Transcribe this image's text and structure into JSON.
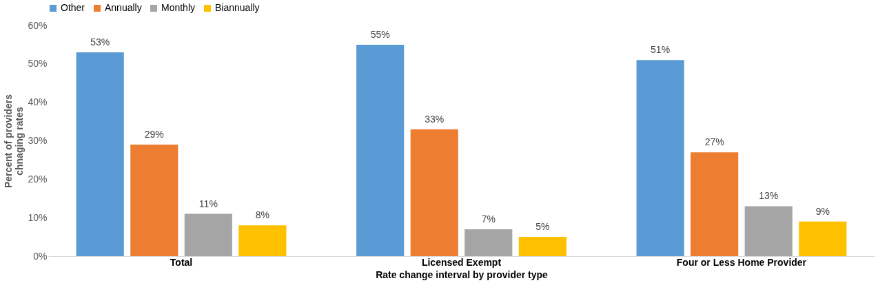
{
  "chart_data": {
    "type": "bar",
    "xlabel": "Rate change interval by provider type",
    "ylabel": "Percent of providers chnaging rates",
    "categories": [
      "Total",
      "Licensed Exempt",
      "Four or Less Home Provider"
    ],
    "series": [
      {
        "name": "Other",
        "color": "#5b9bd5",
        "values": [
          53,
          55,
          51
        ],
        "value_labels": [
          "53%",
          "55%",
          "51%"
        ]
      },
      {
        "name": "Annually",
        "color": "#ed7d31",
        "values": [
          29,
          33,
          27
        ],
        "value_labels": [
          "29%",
          "33%",
          "27%"
        ]
      },
      {
        "name": "Monthly",
        "color": "#a5a5a5",
        "values": [
          11,
          7,
          13
        ],
        "value_labels": [
          "11%",
          "7%",
          "13%"
        ]
      },
      {
        "name": "Biannually",
        "color": "#ffc000",
        "values": [
          8,
          5,
          9
        ],
        "value_labels": [
          "8%",
          "5%",
          "9%"
        ]
      }
    ],
    "ylim": [
      0,
      60
    ],
    "yticks": [
      {
        "value": 0,
        "label": "0%"
      },
      {
        "value": 10,
        "label": "10%"
      },
      {
        "value": 20,
        "label": "20%"
      },
      {
        "value": 30,
        "label": "30%"
      },
      {
        "value": 40,
        "label": "40%"
      },
      {
        "value": 50,
        "label": "50%"
      },
      {
        "value": 60,
        "label": "60%"
      }
    ],
    "grid": false,
    "legend": "top"
  }
}
